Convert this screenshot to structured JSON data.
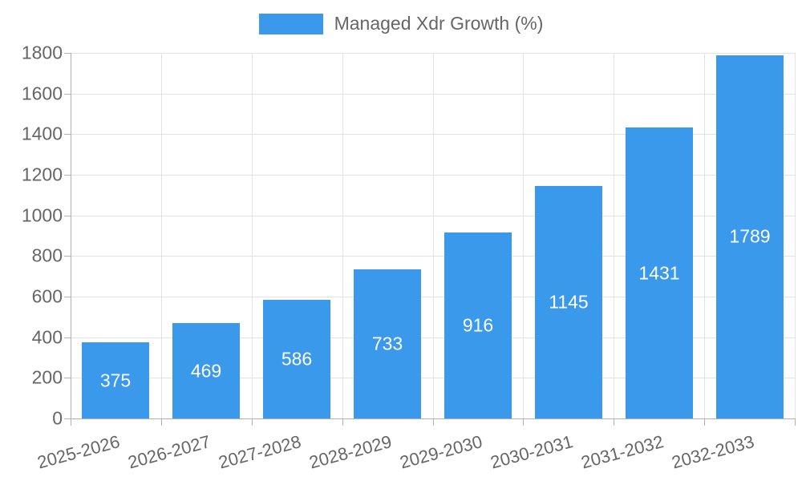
{
  "legend": {
    "label": "Managed Xdr Growth (%)"
  },
  "colors": {
    "bar": "#3b99ec",
    "text": "#666666",
    "value_label": "#ffffff",
    "grid": "#e3e3e3",
    "axis": "#b0b0b0",
    "background": "#ffffff"
  },
  "chart_data": {
    "type": "bar",
    "title": "Managed Xdr Growth (%)",
    "categories": [
      "2025-2026",
      "2026-2027",
      "2027-2028",
      "2028-2029",
      "2029-2030",
      "2030-2031",
      "2031-2032",
      "2032-2033"
    ],
    "values": [
      375,
      469,
      586,
      733,
      916,
      1145,
      1431,
      1789
    ],
    "xlabel": "",
    "ylabel": "",
    "ylim": [
      0,
      1800
    ],
    "ytick_step": 200,
    "grid": true,
    "legend_position": "top-center",
    "value_labels": "inside-center",
    "x_label_rotation_deg": -15
  }
}
